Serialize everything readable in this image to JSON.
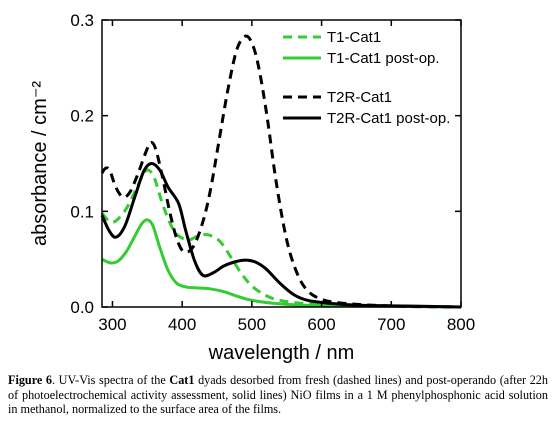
{
  "chart_data": {
    "type": "line",
    "title": "",
    "xlabel": "wavelength / nm",
    "ylabel": "absorbance / cm⁻²",
    "xlim": [
      285,
      800
    ],
    "ylim": [
      0,
      0.3
    ],
    "xticks": [
      300,
      400,
      500,
      600,
      700,
      800
    ],
    "xtick_labels": [
      "300",
      "400",
      "500",
      "600",
      "700",
      "800"
    ],
    "yticks": [
      0.0,
      0.1,
      0.2,
      0.3
    ],
    "ytick_labels": [
      "0.0",
      "0.1",
      "0.2",
      "0.3"
    ],
    "grid": false,
    "legend_position": "top-right",
    "series": [
      {
        "name": "T1-Cat1",
        "color": "#33cc33",
        "dash": "dashed",
        "points": [
          [
            285,
            0.098
          ],
          [
            295,
            0.09
          ],
          [
            305,
            0.09
          ],
          [
            320,
            0.103
          ],
          [
            335,
            0.125
          ],
          [
            345,
            0.14
          ],
          [
            352,
            0.143
          ],
          [
            360,
            0.135
          ],
          [
            370,
            0.112
          ],
          [
            380,
            0.092
          ],
          [
            390,
            0.078
          ],
          [
            400,
            0.072
          ],
          [
            410,
            0.07
          ],
          [
            425,
            0.075
          ],
          [
            440,
            0.075
          ],
          [
            455,
            0.068
          ],
          [
            470,
            0.052
          ],
          [
            485,
            0.035
          ],
          [
            500,
            0.022
          ],
          [
            520,
            0.012
          ],
          [
            540,
            0.007
          ],
          [
            570,
            0.004
          ],
          [
            620,
            0.002
          ],
          [
            700,
            0.001
          ],
          [
            800,
            0.0
          ]
        ]
      },
      {
        "name": "T1-Cat1 post-op.",
        "color": "#33cc33",
        "dash": "solid",
        "points": [
          [
            285,
            0.05
          ],
          [
            290,
            0.048
          ],
          [
            298,
            0.046
          ],
          [
            308,
            0.048
          ],
          [
            320,
            0.058
          ],
          [
            332,
            0.074
          ],
          [
            342,
            0.087
          ],
          [
            350,
            0.091
          ],
          [
            358,
            0.085
          ],
          [
            368,
            0.062
          ],
          [
            380,
            0.038
          ],
          [
            392,
            0.025
          ],
          [
            405,
            0.021
          ],
          [
            420,
            0.02
          ],
          [
            440,
            0.019
          ],
          [
            460,
            0.016
          ],
          [
            480,
            0.011
          ],
          [
            500,
            0.007
          ],
          [
            530,
            0.004
          ],
          [
            570,
            0.002
          ],
          [
            650,
            0.001
          ],
          [
            800,
            0.0
          ]
        ]
      },
      {
        "name": "T2R-Cat1",
        "color": "#000000",
        "dash": "dashed",
        "points": [
          [
            285,
            0.14
          ],
          [
            290,
            0.145
          ],
          [
            296,
            0.143
          ],
          [
            305,
            0.125
          ],
          [
            315,
            0.115
          ],
          [
            325,
            0.12
          ],
          [
            337,
            0.14
          ],
          [
            348,
            0.162
          ],
          [
            355,
            0.172
          ],
          [
            362,
            0.165
          ],
          [
            372,
            0.135
          ],
          [
            382,
            0.1
          ],
          [
            392,
            0.072
          ],
          [
            402,
            0.058
          ],
          [
            415,
            0.062
          ],
          [
            428,
            0.085
          ],
          [
            440,
            0.12
          ],
          [
            452,
            0.17
          ],
          [
            465,
            0.225
          ],
          [
            478,
            0.268
          ],
          [
            490,
            0.283
          ],
          [
            500,
            0.276
          ],
          [
            510,
            0.25
          ],
          [
            522,
            0.198
          ],
          [
            535,
            0.13
          ],
          [
            550,
            0.07
          ],
          [
            565,
            0.035
          ],
          [
            580,
            0.017
          ],
          [
            600,
            0.008
          ],
          [
            630,
            0.004
          ],
          [
            700,
            0.001
          ],
          [
            800,
            0.0
          ]
        ]
      },
      {
        "name": "T2R-Cat1 post-op.",
        "color": "#000000",
        "dash": "solid",
        "points": [
          [
            285,
            0.096
          ],
          [
            295,
            0.08
          ],
          [
            305,
            0.073
          ],
          [
            318,
            0.085
          ],
          [
            332,
            0.115
          ],
          [
            345,
            0.142
          ],
          [
            356,
            0.15
          ],
          [
            368,
            0.143
          ],
          [
            380,
            0.125
          ],
          [
            395,
            0.108
          ],
          [
            405,
            0.08
          ],
          [
            418,
            0.048
          ],
          [
            430,
            0.033
          ],
          [
            445,
            0.036
          ],
          [
            460,
            0.043
          ],
          [
            475,
            0.047
          ],
          [
            490,
            0.049
          ],
          [
            505,
            0.047
          ],
          [
            520,
            0.04
          ],
          [
            540,
            0.025
          ],
          [
            560,
            0.013
          ],
          [
            580,
            0.007
          ],
          [
            610,
            0.004
          ],
          [
            650,
            0.002
          ],
          [
            720,
            0.001
          ],
          [
            800,
            0.0
          ]
        ]
      }
    ]
  },
  "caption": {
    "figure_label": "Figure 6",
    "text_1": ". UV-Vis spectra of the ",
    "bold_term": "Cat1",
    "text_2": " dyads desorbed from fresh (dashed lines) and post-operando (after 22h of photoelectrochemical activity assessment, solid lines) NiO films in a 1 M phenylphosphonic acid solution in methanol, normalized to the surface area of the films."
  }
}
